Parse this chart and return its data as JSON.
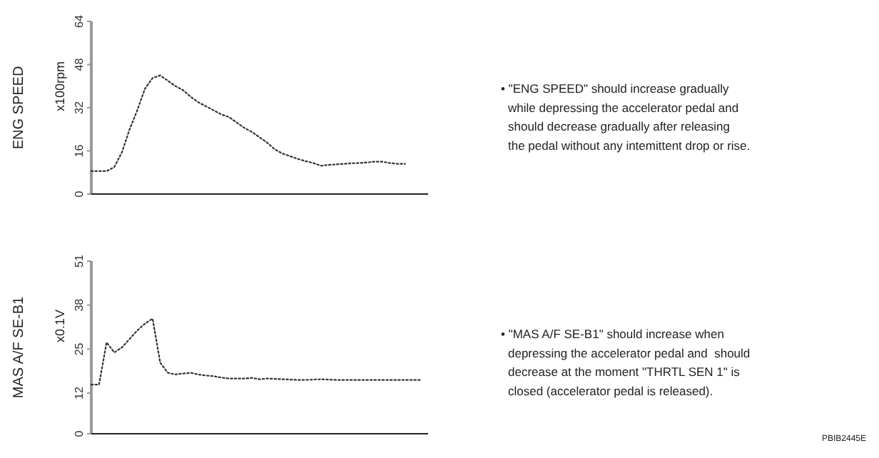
{
  "chart_data": [
    {
      "type": "line",
      "ylabel": "ENG SPEED",
      "annotations": [
        "x100rpm",
        "• \"ENG SPEED\" should increase gradually\nwhile depressing the accelerator pedal and\nshould decrease gradually after releasing\nthe pedal without any intemittent drop or rise."
      ],
      "categories": [
        null,
        null,
        null,
        null,
        null,
        null,
        null,
        null,
        null,
        null,
        null,
        null,
        null,
        null,
        null,
        null,
        null,
        null,
        null,
        null,
        null,
        null,
        null,
        null,
        null,
        null,
        null,
        null,
        null,
        null,
        null,
        null,
        null,
        null,
        null,
        null,
        null,
        null,
        null,
        null,
        null,
        null,
        null,
        null,
        null
      ],
      "series": [
        {
          "color": "#333333",
          "values": [
            8.5,
            8.5,
            8.5,
            10,
            15.5,
            24,
            31,
            39,
            43,
            44,
            42,
            40,
            38.5,
            36,
            34,
            32.5,
            31,
            29.5,
            28.5,
            26.5,
            24.5,
            23,
            21,
            19,
            16.5,
            15,
            14,
            13,
            12.2,
            11.5,
            10.5,
            10.8,
            11,
            11.2,
            11.4,
            11.5,
            11.7,
            12,
            12,
            11.5,
            11.2,
            11.2,
            null,
            null,
            null
          ]
        }
      ],
      "ylim": [
        0,
        64
      ],
      "yticks": [
        0,
        16,
        32,
        48,
        64
      ],
      "grid": false,
      "line_style": "dotted",
      "marker": "none"
    },
    {
      "type": "line",
      "ylabel": "MAS A/F SE-B1",
      "annotations": [
        "x0.1V",
        "• \"MAS A/F SE-B1\" should increase when\ndepressing the accelerator pedal and  should\ndecrease at the moment \"THRTL SEN 1\" is\nclosed (accelerator pedal is released).",
        "PBIB2445E"
      ],
      "categories": [
        null,
        null,
        null,
        null,
        null,
        null,
        null,
        null,
        null,
        null,
        null,
        null,
        null,
        null,
        null,
        null,
        null,
        null,
        null,
        null,
        null,
        null,
        null,
        null,
        null,
        null,
        null,
        null,
        null,
        null,
        null,
        null,
        null,
        null,
        null,
        null,
        null,
        null,
        null,
        null,
        null,
        null,
        null,
        null,
        null
      ],
      "series": [
        {
          "color": "#333333",
          "values": [
            14.5,
            14.5,
            27,
            24,
            25.5,
            28,
            30.5,
            32.5,
            34,
            21,
            18,
            17.5,
            17.8,
            18,
            17.5,
            17.2,
            17,
            16.6,
            16.3,
            16.3,
            16.3,
            16.5,
            16.1,
            16.3,
            16.2,
            16.1,
            16,
            15.9,
            15.9,
            16,
            16.1,
            16,
            15.9,
            15.9,
            15.9,
            15.9,
            15.9,
            15.9,
            15.9,
            15.9,
            15.9,
            15.9,
            15.9,
            15.9,
            null
          ]
        }
      ],
      "ylim": [
        0,
        51
      ],
      "yticks": [
        0,
        12,
        25,
        38,
        51
      ],
      "grid": false,
      "line_style": "dotted",
      "marker": "none"
    }
  ]
}
